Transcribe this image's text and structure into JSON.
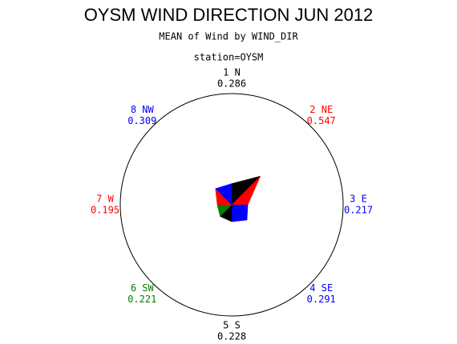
{
  "chart_data": {
    "type": "star",
    "title": "OYSM WIND DIRECTION JUN 2012",
    "subtitle": "MEAN of Wind by WIND_DIR",
    "group_label": "station=OYSM",
    "categories": [
      "1 N",
      "2 NE",
      "3 E",
      "4 SE",
      "5 S",
      "6 SW",
      "7 W",
      "8 NW"
    ],
    "values": [
      0.286,
      0.547,
      0.217,
      0.291,
      0.228,
      0.221,
      0.195,
      0.309
    ],
    "colors": [
      "#000000",
      "#ff0000",
      "#0000ff",
      "#0000ff",
      "#000000",
      "#008000",
      "#ff0000",
      "#0000ff"
    ],
    "rlim": [
      0,
      1.5
    ]
  }
}
